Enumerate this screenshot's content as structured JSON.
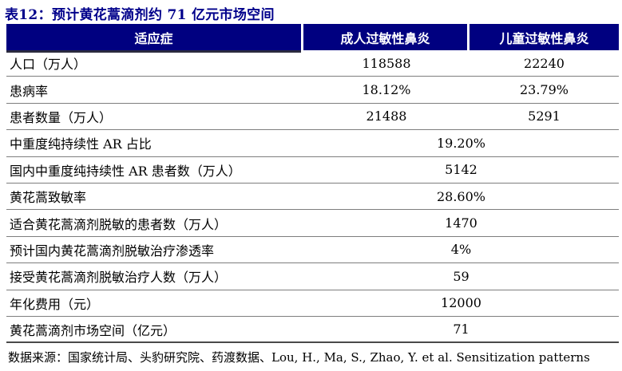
{
  "title": "表12：预计黄花蒿滴剂约 71 亿元市场空间",
  "table": {
    "columns": [
      "适应症",
      "成人过敏性鼻炎",
      "儿童过敏性鼻炎"
    ],
    "rows": [
      {
        "label": "人口（万人）",
        "adult": "118588",
        "child": "22240"
      },
      {
        "label": "患病率",
        "adult": "18.12%",
        "child": "23.79%"
      },
      {
        "label": "患者数量（万人）",
        "adult": "21488",
        "child": "5291"
      },
      {
        "label": "中重度纯持续性 AR 占比",
        "merged": "19.20%"
      },
      {
        "label": "国内中重度纯持续性 AR 患者数（万人）",
        "merged": "5142"
      },
      {
        "label": "黄花蒿致敏率",
        "merged": "28.60%"
      },
      {
        "label": "适合黄花蒿滴剂脱敏的患者数（万人）",
        "merged": "1470"
      },
      {
        "label": "预计国内黄花蒿滴剂脱敏治疗渗透率",
        "merged": "4%"
      },
      {
        "label": "接受黄花蒿滴剂脱敏治疗人数（万人）",
        "merged": "59"
      },
      {
        "label": "年化费用（元）",
        "merged": "12000"
      },
      {
        "label": "黄花蒿滴剂市场空间（亿元）",
        "merged": "71"
      }
    ]
  },
  "footer": "数据来源：国家统计局、头豹研究院、药渡数据、Lou, H., Ma, S., Zhao, Y. et al. Sensitization patterns",
  "colors": {
    "header_bg": "#000080",
    "header_text": "#FFFFFF",
    "title_text": "#00008B",
    "divider": "#7E7E7E",
    "bottom_border": "#4A4A4A"
  }
}
